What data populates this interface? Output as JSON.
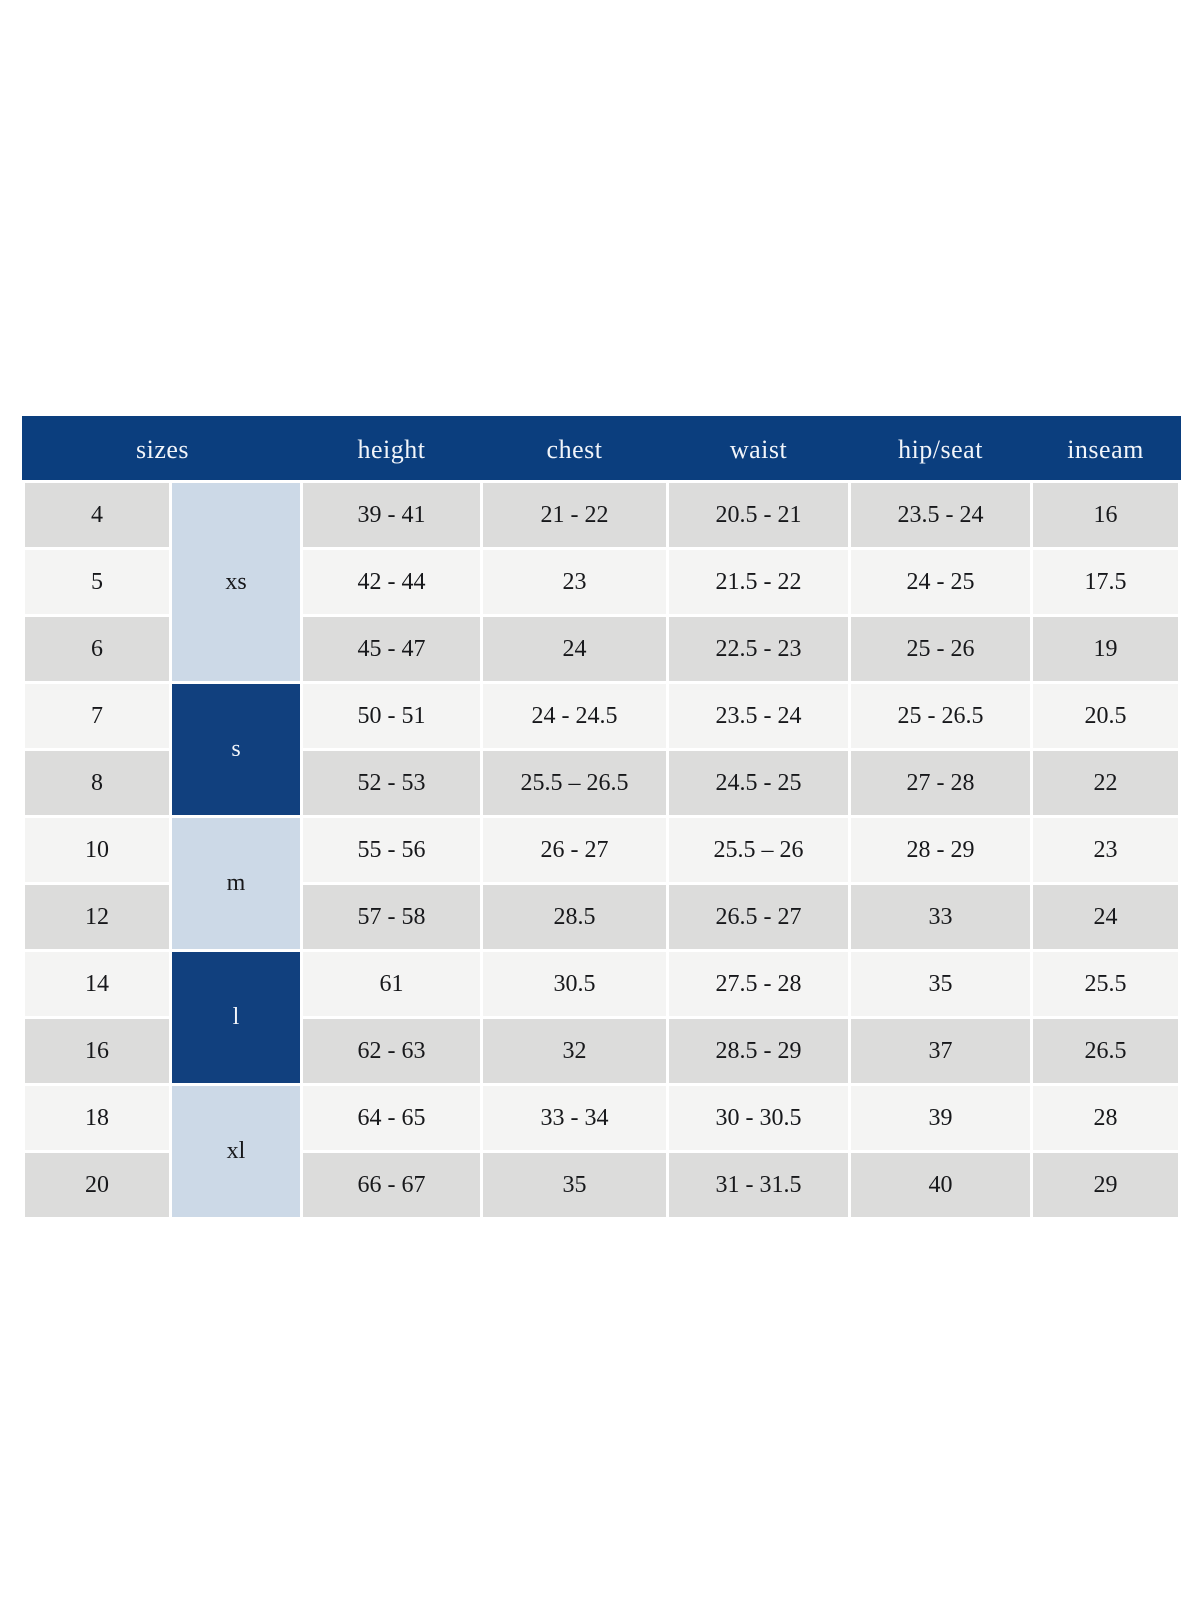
{
  "colors": {
    "page_bg": "#ffffff",
    "header_bg": "#0b3e7e",
    "header_text": "#f2f5fa",
    "group_light_bg": "#ccd9e7",
    "group_dark_bg": "#11407e",
    "row_gray": "#dcdcdb",
    "row_light": "#f4f4f3",
    "cell_text": "#17181b"
  },
  "chart_data": {
    "type": "table",
    "headers": [
      "sizes",
      "height",
      "chest",
      "waist",
      "hip/seat",
      "inseam"
    ],
    "column_keys": [
      "size_number",
      "size_letter",
      "height",
      "chest",
      "waist",
      "hip_seat",
      "inseam"
    ],
    "groups": [
      {
        "label": "xs",
        "tone": "light",
        "rows": [
          [
            "4",
            "39 - 41",
            "21 - 22",
            "20.5 - 21",
            "23.5 - 24",
            "16"
          ],
          [
            "5",
            "42 - 44",
            "23",
            "21.5 - 22",
            "24 - 25",
            "17.5"
          ],
          [
            "6",
            "45 - 47",
            "24",
            "22.5 - 23",
            "25 - 26",
            "19"
          ]
        ]
      },
      {
        "label": "s",
        "tone": "dark",
        "rows": [
          [
            "7",
            "50 - 51",
            "24 - 24.5",
            "23.5 - 24",
            "25 - 26.5",
            "20.5"
          ],
          [
            "8",
            "52 - 53",
            "25.5 – 26.5",
            "24.5 - 25",
            "27 - 28",
            "22"
          ]
        ]
      },
      {
        "label": "m",
        "tone": "light",
        "rows": [
          [
            "10",
            "55 - 56",
            "26 - 27",
            "25.5 – 26",
            "28 - 29",
            "23"
          ],
          [
            "12",
            "57 - 58",
            "28.5",
            "26.5 - 27",
            "33",
            "24"
          ]
        ]
      },
      {
        "label": "l",
        "tone": "dark",
        "rows": [
          [
            "14",
            "61",
            "30.5",
            "27.5 - 28",
            "35",
            "25.5"
          ],
          [
            "16",
            "62 - 63",
            "32",
            "28.5 - 29",
            "37",
            "26.5"
          ]
        ]
      },
      {
        "label": "xl",
        "tone": "light",
        "rows": [
          [
            "18",
            "64 - 65",
            "33 - 34",
            "30 - 30.5",
            "39",
            "28"
          ],
          [
            "20",
            "66 - 67",
            "35",
            "31 - 31.5",
            "40",
            "29"
          ]
        ]
      }
    ]
  }
}
